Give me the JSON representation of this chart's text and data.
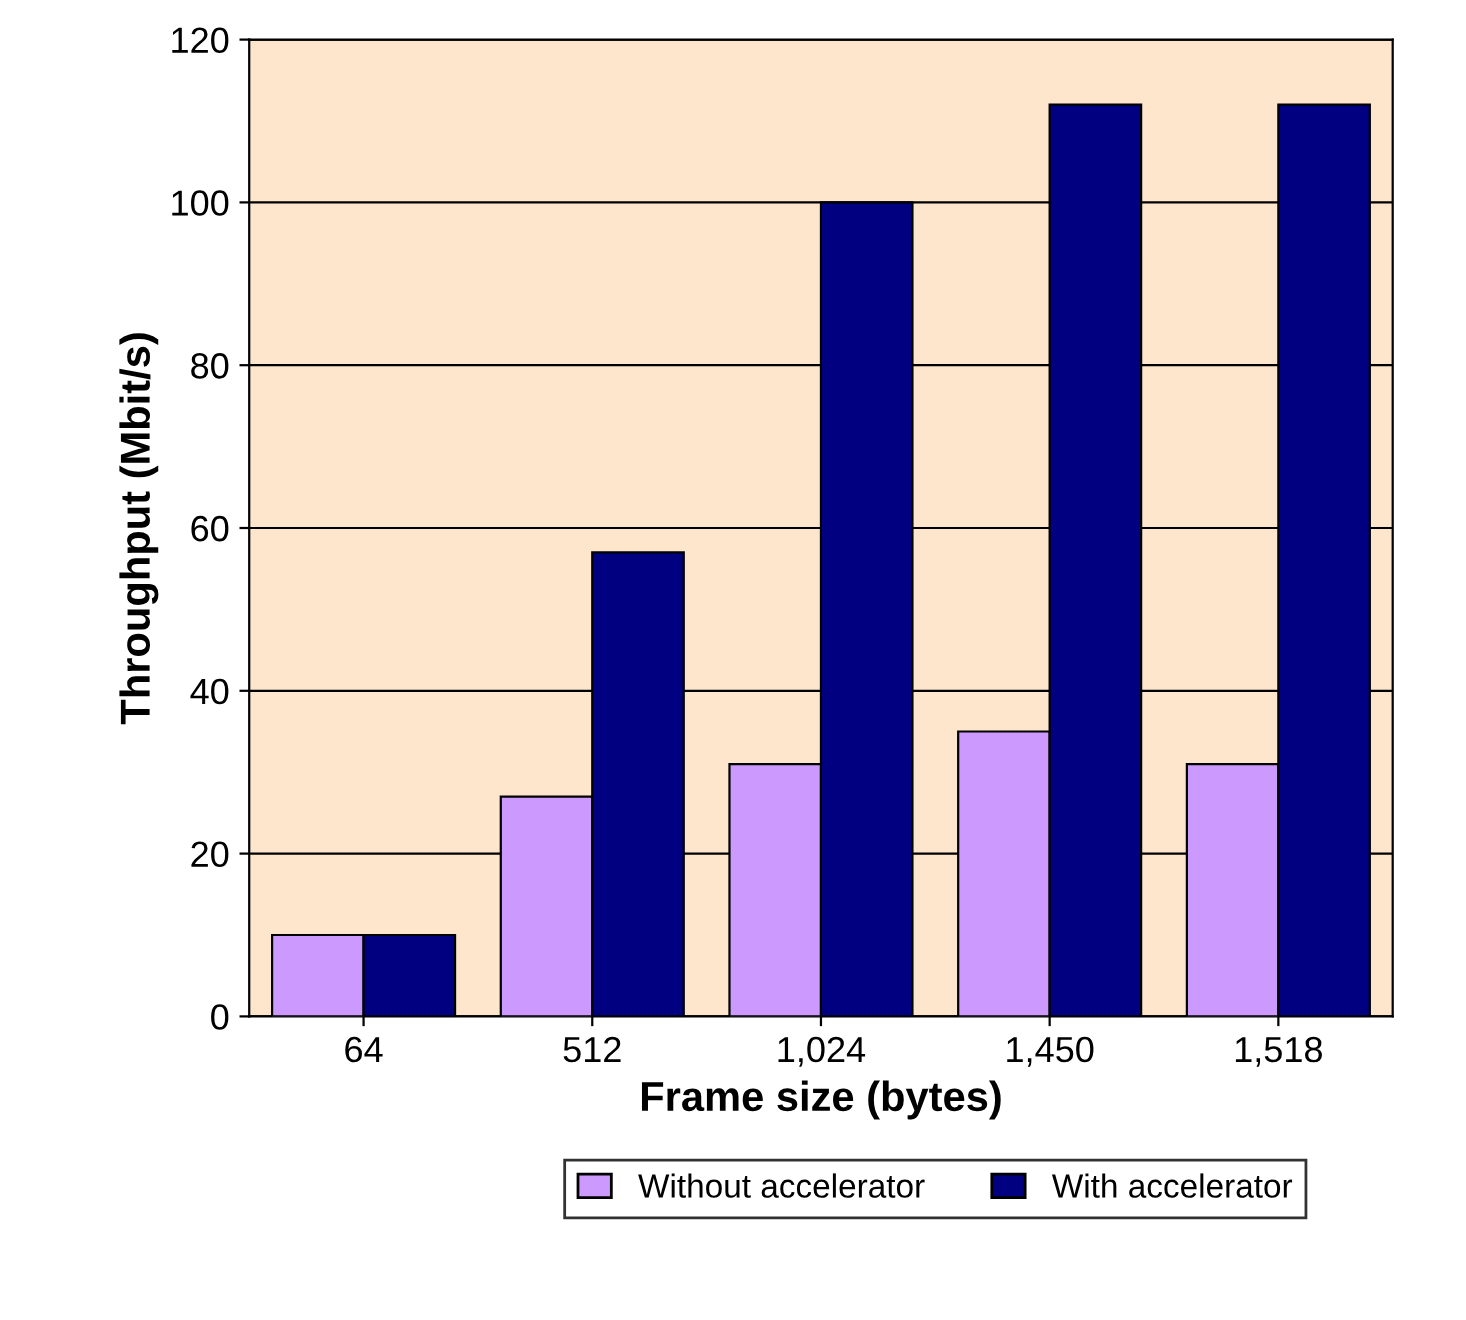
{
  "chart_data": {
    "type": "bar",
    "xlabel": "Frame size (bytes)",
    "ylabel": "Throughput (Mbit/s)",
    "categories": [
      "64",
      "512",
      "1,024",
      "1,450",
      "1,518"
    ],
    "series": [
      {
        "name": "Without accelerator",
        "color": "#cc99ff",
        "values": [
          10,
          27,
          31,
          35,
          31
        ]
      },
      {
        "name": "With accelerator",
        "color": "#000080",
        "values": [
          10,
          57,
          100,
          112,
          112
        ]
      }
    ],
    "ylim": [
      0,
      120
    ],
    "yticks": [
      0,
      20,
      40,
      60,
      80,
      100,
      120
    ],
    "grid": "y",
    "legend": "bottom"
  }
}
